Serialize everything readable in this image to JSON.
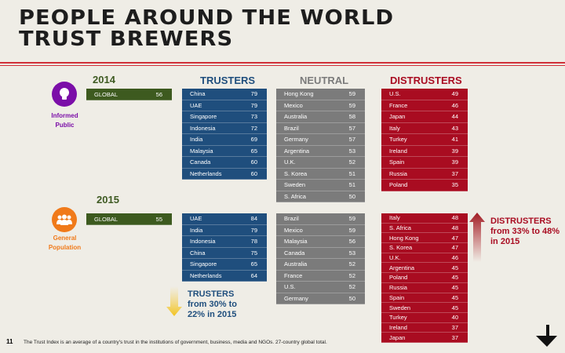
{
  "title": {
    "line1": "PEOPLE AROUND THE WORLD",
    "line2": "TRUST BREWERS"
  },
  "headers": {
    "trusters": "TRUSTERS",
    "neutral": "NEUTRAL",
    "distrusters": "DISTRUSTERS"
  },
  "colors": {
    "trusters": "#1f4e7d",
    "neutral": "#7b7b7b",
    "distrusters": "#a90c21",
    "global": "#3d5a1f",
    "informed": "#7b0ea8",
    "general": "#f07a1a"
  },
  "y2014": {
    "year": "2014",
    "audience": "Informed Public",
    "audience_icon": "lightbulb-icon",
    "global": {
      "label": "GLOBAL",
      "value": "56"
    },
    "trusters": [
      [
        "China",
        "79"
      ],
      [
        "UAE",
        "79"
      ],
      [
        "Singapore",
        "73"
      ],
      [
        "Indonesia",
        "72"
      ],
      [
        "India",
        "69"
      ],
      [
        "Malaysia",
        "65"
      ],
      [
        "Canada",
        "60"
      ],
      [
        "Netherlands",
        "60"
      ]
    ],
    "neutral": [
      [
        "Hong Kong",
        "59"
      ],
      [
        "Mexico",
        "59"
      ],
      [
        "Australia",
        "58"
      ],
      [
        "Brazil",
        "57"
      ],
      [
        "Germany",
        "57"
      ],
      [
        "Argentina",
        "53"
      ],
      [
        "U.K.",
        "52"
      ],
      [
        "S. Korea",
        "51"
      ],
      [
        "Sweden",
        "51"
      ],
      [
        "S. Africa",
        "50"
      ]
    ],
    "distrusters": [
      [
        "U.S.",
        "49"
      ],
      [
        "France",
        "46"
      ],
      [
        "Japan",
        "44"
      ],
      [
        "Italy",
        "43"
      ],
      [
        "Turkey",
        "41"
      ],
      [
        "Ireland",
        "39"
      ],
      [
        "Spain",
        "39"
      ],
      [
        "Russia",
        "37"
      ],
      [
        "Poland",
        "35"
      ]
    ]
  },
  "y2015": {
    "year": "2015",
    "audience": "General Population",
    "audience_icon": "people-icon",
    "global": {
      "label": "GLOBAL",
      "value": "55"
    },
    "trusters": [
      [
        "UAE",
        "84"
      ],
      [
        "India",
        "79"
      ],
      [
        "Indonesia",
        "78"
      ],
      [
        "China",
        "75"
      ],
      [
        "Singapore",
        "65"
      ],
      [
        "Netherlands",
        "64"
      ]
    ],
    "neutral": [
      [
        "Brazil",
        "59"
      ],
      [
        "Mexico",
        "59"
      ],
      [
        "Malaysia",
        "56"
      ],
      [
        "Canada",
        "53"
      ],
      [
        "Australia",
        "52"
      ],
      [
        "France",
        "52"
      ],
      [
        "U.S.",
        "52"
      ],
      [
        "Germany",
        "50"
      ]
    ],
    "distrusters": [
      [
        "Italy",
        "48"
      ],
      [
        "S. Africa",
        "48"
      ],
      [
        "Hong Kong",
        "47"
      ],
      [
        "S. Korea",
        "47"
      ],
      [
        "U.K.",
        "46"
      ],
      [
        "Argentina",
        "45"
      ],
      [
        "Poland",
        "45"
      ],
      [
        "Russia",
        "45"
      ],
      [
        "Spain",
        "45"
      ],
      [
        "Sweden",
        "45"
      ],
      [
        "Turkey",
        "40"
      ],
      [
        "Ireland",
        "37"
      ],
      [
        "Japan",
        "37"
      ]
    ]
  },
  "notes": {
    "trusters": "TRUSTERS from 30% to 22% in 2015",
    "distrusters": "DISTRUSTERS from 33% to 48% in 2015"
  },
  "footer": {
    "page": "11",
    "text": "The Trust Index is an average of a country's trust in the institutions of government, business, media and NGOs. 27-country global total."
  }
}
